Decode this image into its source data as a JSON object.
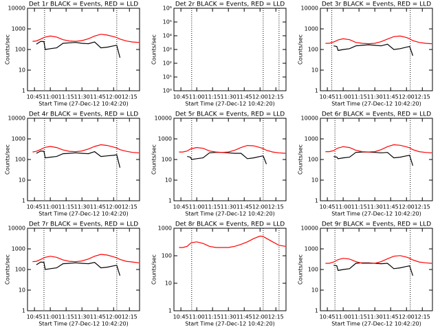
{
  "chart_data": [
    {
      "type": "line",
      "title": "Det 1r BLACK = Events, RED = LLD",
      "xlabel": "Start Time (27-Dec-12 10:42:20)",
      "ylabel": "Counts/sec",
      "log_y": true,
      "x": [
        10.72,
        10.78,
        10.85,
        10.9,
        10.92,
        11.0,
        11.1,
        11.2,
        11.3,
        11.4,
        11.5,
        11.6,
        11.7,
        11.8,
        11.9,
        12.0,
        12.05,
        12.1,
        12.2,
        12.3,
        12.4
      ],
      "xlim": [
        10.64,
        12.41
      ],
      "xticks": [
        {
          "value": 10.75,
          "label": "10:45"
        },
        {
          "value": 11,
          "label": "11:00"
        },
        {
          "value": 11.25,
          "label": "11:15"
        },
        {
          "value": 11.5,
          "label": "11:30"
        },
        {
          "value": 11.75,
          "label": "11:45"
        },
        {
          "value": 12,
          "label": "12:00"
        },
        {
          "value": 12.25,
          "label": "12:15"
        }
      ],
      "ylim": [
        1,
        10000
      ],
      "yticks": [
        1,
        10,
        100,
        1000,
        10000
      ],
      "vlines": [
        10.91,
        12.05
      ],
      "series": [
        {
          "name": "Events",
          "color": "#000000",
          "values": [
            null,
            180,
            250,
            240,
            100,
            110,
            120,
            200,
            210,
            220,
            200,
            190,
            230,
            120,
            130,
            150,
            160,
            40,
            null,
            null,
            null
          ]
        },
        {
          "name": "LLD",
          "color": "#ff0000",
          "values": [
            250,
            260,
            320,
            380,
            400,
            450,
            400,
            300,
            260,
            250,
            270,
            330,
            450,
            550,
            500,
            420,
            380,
            320,
            260,
            230,
            220
          ]
        }
      ]
    },
    {
      "type": "line",
      "title": "Det 2r BLACK = Events, RED = LLD",
      "xlabel": "Start Time (27-Dec-12 10:42:20)",
      "ylabel": "Counts/sec",
      "log_y": true,
      "x": [],
      "xlim": [
        10.64,
        12.41
      ],
      "xticks": [
        {
          "value": 10.75,
          "label": "10:45"
        },
        {
          "value": 11,
          "label": "11:00"
        },
        {
          "value": 11.25,
          "label": "11:15"
        },
        {
          "value": 11.5,
          "label": "11:30"
        },
        {
          "value": 11.75,
          "label": "11:45"
        },
        {
          "value": 12,
          "label": "12:00"
        },
        {
          "value": 12.25,
          "label": "12:15"
        }
      ],
      "ylim": [
        1,
        1000000
      ],
      "yticks": [
        {
          "value": 1,
          "label": "10⁰"
        },
        {
          "value": 10,
          "label": "10¹"
        },
        {
          "value": 100,
          "label": "10²"
        },
        {
          "value": 1000,
          "label": "10³"
        },
        {
          "value": 10000,
          "label": "10⁴"
        },
        {
          "value": 100000,
          "label": "10⁵"
        },
        {
          "value": 1000000,
          "label": "10⁶"
        }
      ],
      "vlines": [
        10.92,
        12.05,
        12.3
      ],
      "series": []
    },
    {
      "type": "line",
      "title": "Det 3r BLACK = Events, RED = LLD",
      "xlabel": "Start Time (27-Dec-12 10:42:20)",
      "ylabel": "Counts/sec",
      "log_y": true,
      "x": [
        10.72,
        10.78,
        10.85,
        10.9,
        10.92,
        11.0,
        11.1,
        11.2,
        11.3,
        11.4,
        11.5,
        11.6,
        11.7,
        11.8,
        11.9,
        12.0,
        12.05,
        12.1,
        12.2,
        12.3,
        12.4
      ],
      "xlim": [
        10.64,
        12.41
      ],
      "xticks": [
        {
          "value": 10.75,
          "label": "10:45"
        },
        {
          "value": 11,
          "label": "11:00"
        },
        {
          "value": 11.25,
          "label": "11:15"
        },
        {
          "value": 11.5,
          "label": "11:30"
        },
        {
          "value": 11.75,
          "label": "11:45"
        },
        {
          "value": 12,
          "label": "12:00"
        },
        {
          "value": 12.25,
          "label": "12:15"
        }
      ],
      "ylim": [
        1,
        10000
      ],
      "yticks": [
        1,
        10,
        100,
        1000,
        10000
      ],
      "vlines": [
        10.82,
        12.06
      ],
      "series": [
        {
          "name": "Events",
          "color": "#000000",
          "values": [
            null,
            null,
            150,
            140,
            90,
            100,
            110,
            150,
            160,
            170,
            160,
            150,
            180,
            100,
            110,
            130,
            140,
            50,
            null,
            null,
            null
          ]
        },
        {
          "name": "LLD",
          "color": "#ff0000",
          "values": [
            200,
            200,
            230,
            270,
            290,
            330,
            300,
            220,
            200,
            190,
            200,
            240,
            320,
            420,
            450,
            380,
            330,
            270,
            220,
            200,
            190
          ]
        }
      ]
    },
    {
      "type": "line",
      "title": "Det 4r BLACK = Events, RED = LLD",
      "xlabel": "Start Time (27-Dec-12 10:42:20)",
      "ylabel": "Counts/sec",
      "log_y": true,
      "x": [
        10.72,
        10.78,
        10.85,
        10.9,
        10.92,
        11.0,
        11.1,
        11.2,
        11.3,
        11.4,
        11.5,
        11.6,
        11.7,
        11.8,
        11.9,
        12.0,
        12.05,
        12.1,
        12.2,
        12.3,
        12.4
      ],
      "xlim": [
        10.64,
        12.41
      ],
      "xticks": [
        {
          "value": 10.75,
          "label": "10:45"
        },
        {
          "value": 11,
          "label": "11:00"
        },
        {
          "value": 11.25,
          "label": "11:15"
        },
        {
          "value": 11.5,
          "label": "11:30"
        },
        {
          "value": 11.75,
          "label": "11:45"
        },
        {
          "value": 12,
          "label": "12:00"
        },
        {
          "value": 12.25,
          "label": "12:15"
        }
      ],
      "ylim": [
        1,
        10000
      ],
      "yticks": [
        1,
        10,
        100,
        1000,
        10000
      ],
      "vlines": [
        10.91,
        12.05
      ],
      "series": [
        {
          "name": "Events",
          "color": "#000000",
          "values": [
            null,
            200,
            260,
            250,
            120,
            130,
            140,
            190,
            200,
            210,
            200,
            190,
            240,
            140,
            150,
            160,
            170,
            40,
            null,
            null,
            null
          ]
        },
        {
          "name": "LLD",
          "color": "#ff0000",
          "values": [
            230,
            250,
            310,
            370,
            390,
            430,
            380,
            290,
            250,
            240,
            260,
            320,
            430,
            520,
            480,
            400,
            360,
            300,
            250,
            220,
            210
          ]
        }
      ]
    },
    {
      "type": "line",
      "title": "Det 5r BLACK = Events, RED = LLD",
      "xlabel": "Start Time (27-Dec-12 10:42:20)",
      "ylabel": "Counts/sec",
      "log_y": true,
      "x": [
        10.72,
        10.78,
        10.85,
        10.9,
        10.92,
        11.0,
        11.1,
        11.2,
        11.3,
        11.4,
        11.5,
        11.6,
        11.7,
        11.8,
        11.9,
        12.0,
        12.05,
        12.1,
        12.2,
        12.3,
        12.4
      ],
      "xlim": [
        10.64,
        12.41
      ],
      "xticks": [
        {
          "value": 10.75,
          "label": "10:45"
        },
        {
          "value": 11,
          "label": "11:00"
        },
        {
          "value": 11.25,
          "label": "11:15"
        },
        {
          "value": 11.5,
          "label": "11:30"
        },
        {
          "value": 11.75,
          "label": "11:45"
        },
        {
          "value": 12,
          "label": "12:00"
        },
        {
          "value": 12.25,
          "label": "12:15"
        }
      ],
      "ylim": [
        1,
        10000
      ],
      "yticks": [
        1,
        10,
        100,
        1000,
        10000
      ],
      "vlines": [
        10.92,
        12.05
      ],
      "series": [
        {
          "name": "Events",
          "color": "#000000",
          "values": [
            null,
            null,
            140,
            130,
            100,
            110,
            120,
            210,
            220,
            220,
            210,
            200,
            200,
            110,
            120,
            140,
            150,
            60,
            null,
            null,
            null
          ]
        },
        {
          "name": "LLD",
          "color": "#ff0000",
          "values": [
            230,
            230,
            260,
            320,
            340,
            380,
            350,
            260,
            230,
            220,
            230,
            280,
            380,
            480,
            460,
            380,
            340,
            280,
            230,
            210,
            200
          ]
        }
      ]
    },
    {
      "type": "line",
      "title": "Det 6r BLACK = Events, RED = LLD",
      "xlabel": "Start Time (27-Dec-12 10:42:20)",
      "ylabel": "Counts/sec",
      "log_y": true,
      "x": [
        10.72,
        10.78,
        10.85,
        10.9,
        10.92,
        11.0,
        11.1,
        11.2,
        11.3,
        11.4,
        11.5,
        11.6,
        11.7,
        11.8,
        11.9,
        12.0,
        12.05,
        12.1,
        12.2,
        12.3,
        12.4
      ],
      "xlim": [
        10.64,
        12.41
      ],
      "xticks": [
        {
          "value": 10.75,
          "label": "10:45"
        },
        {
          "value": 11,
          "label": "11:00"
        },
        {
          "value": 11.25,
          "label": "11:15"
        },
        {
          "value": 11.5,
          "label": "11:30"
        },
        {
          "value": 11.75,
          "label": "11:45"
        },
        {
          "value": 12,
          "label": "12:00"
        },
        {
          "value": 12.25,
          "label": "12:15"
        }
      ],
      "ylim": [
        1,
        10000
      ],
      "yticks": [
        1,
        10,
        100,
        1000,
        10000
      ],
      "vlines": [
        10.87,
        12.06
      ],
      "series": [
        {
          "name": "Events",
          "color": "#000000",
          "values": [
            null,
            null,
            140,
            130,
            110,
            120,
            130,
            220,
            230,
            230,
            220,
            210,
            220,
            120,
            130,
            150,
            160,
            50,
            null,
            null,
            null
          ]
        },
        {
          "name": "LLD",
          "color": "#ff0000",
          "values": [
            240,
            240,
            270,
            340,
            360,
            420,
            380,
            280,
            240,
            230,
            240,
            300,
            420,
            520,
            490,
            410,
            370,
            300,
            240,
            220,
            210
          ]
        }
      ]
    },
    {
      "type": "line",
      "title": "Det 7r BLACK = Events, RED = LLD",
      "xlabel": "Start Time (27-Dec-12 10:42:20)",
      "ylabel": "Counts/sec",
      "log_y": true,
      "x": [
        10.72,
        10.78,
        10.85,
        10.9,
        10.92,
        11.0,
        11.1,
        11.2,
        11.3,
        11.4,
        11.5,
        11.6,
        11.7,
        11.8,
        11.9,
        12.0,
        12.05,
        12.1,
        12.2,
        12.3,
        12.4
      ],
      "xlim": [
        10.64,
        12.41
      ],
      "xticks": [
        {
          "value": 10.75,
          "label": "10:45"
        },
        {
          "value": 11,
          "label": "11:00"
        },
        {
          "value": 11.25,
          "label": "11:15"
        },
        {
          "value": 11.5,
          "label": "11:30"
        },
        {
          "value": 11.75,
          "label": "11:45"
        },
        {
          "value": 12,
          "label": "12:00"
        },
        {
          "value": 12.25,
          "label": "12:15"
        }
      ],
      "ylim": [
        1,
        10000
      ],
      "yticks": [
        1,
        10,
        100,
        1000,
        10000
      ],
      "vlines": [
        10.9,
        12.05
      ],
      "series": [
        {
          "name": "Events",
          "color": "#000000",
          "values": [
            null,
            170,
            230,
            220,
            100,
            110,
            120,
            190,
            200,
            210,
            200,
            190,
            220,
            120,
            130,
            150,
            160,
            50,
            null,
            null,
            null
          ]
        },
        {
          "name": "LLD",
          "color": "#ff0000",
          "values": [
            240,
            250,
            310,
            370,
            390,
            440,
            390,
            290,
            250,
            240,
            260,
            320,
            440,
            540,
            500,
            410,
            370,
            310,
            250,
            230,
            210
          ]
        }
      ]
    },
    {
      "type": "line",
      "title": "Det 8r BLACK = Events, RED = LLD",
      "xlabel": "Start Time (27-Dec-12 10:42:20)",
      "ylabel": "Counts/sec",
      "log_y": true,
      "x": [
        10.72,
        10.78,
        10.85,
        10.9,
        10.92,
        11.0,
        11.1,
        11.2,
        11.3,
        11.4,
        11.5,
        11.6,
        11.7,
        11.8,
        11.9,
        12.0,
        12.05,
        12.1,
        12.2,
        12.3,
        12.4
      ],
      "xlim": [
        10.64,
        12.41
      ],
      "xticks": [
        {
          "value": 10.75,
          "label": "10:45"
        },
        {
          "value": 11,
          "label": "11:00"
        },
        {
          "value": 11.25,
          "label": "11:15"
        },
        {
          "value": 11.5,
          "label": "11:30"
        },
        {
          "value": 11.75,
          "label": "11:45"
        },
        {
          "value": 12,
          "label": "12:00"
        },
        {
          "value": 12.25,
          "label": "12:15"
        }
      ],
      "ylim": [
        1,
        1000
      ],
      "yticks": [
        1,
        10,
        100,
        1000
      ],
      "vlines": [
        10.92,
        12.05,
        12.3
      ],
      "series": [
        {
          "name": "LLD",
          "color": "#ff0000",
          "values": [
            200,
            200,
            220,
            280,
            300,
            320,
            280,
            220,
            200,
            200,
            200,
            220,
            260,
            320,
            420,
            520,
            500,
            430,
            320,
            240,
            220
          ]
        }
      ]
    },
    {
      "type": "line",
      "title": "Det 9r BLACK = Events, RED = LLD",
      "xlabel": "Start Time (27-Dec-12 10:42:20)",
      "ylabel": "Counts/sec",
      "log_y": true,
      "x": [
        10.72,
        10.78,
        10.85,
        10.9,
        10.92,
        11.0,
        11.1,
        11.2,
        11.3,
        11.4,
        11.5,
        11.6,
        11.7,
        11.8,
        11.9,
        12.0,
        12.05,
        12.1,
        12.2,
        12.3,
        12.4
      ],
      "xlim": [
        10.64,
        12.41
      ],
      "xticks": [
        {
          "value": 10.75,
          "label": "10:45"
        },
        {
          "value": 11,
          "label": "11:00"
        },
        {
          "value": 11.25,
          "label": "11:15"
        },
        {
          "value": 11.5,
          "label": "11:30"
        },
        {
          "value": 11.75,
          "label": "11:45"
        },
        {
          "value": 12,
          "label": "12:00"
        },
        {
          "value": 12.25,
          "label": "12:15"
        }
      ],
      "ylim": [
        1,
        10000
      ],
      "yticks": [
        1,
        10,
        100,
        1000,
        10000
      ],
      "vlines": [
        10.87,
        12.06
      ],
      "series": [
        {
          "name": "Events",
          "color": "#000000",
          "values": [
            null,
            null,
            160,
            150,
            90,
            100,
            110,
            200,
            210,
            210,
            200,
            190,
            200,
            110,
            120,
            140,
            150,
            50,
            null,
            null,
            null
          ]
        },
        {
          "name": "LLD",
          "color": "#ff0000",
          "values": [
            200,
            200,
            230,
            280,
            300,
            350,
            320,
            240,
            200,
            200,
            200,
            240,
            330,
            440,
            470,
            400,
            350,
            290,
            230,
            210,
            200
          ]
        }
      ]
    }
  ]
}
